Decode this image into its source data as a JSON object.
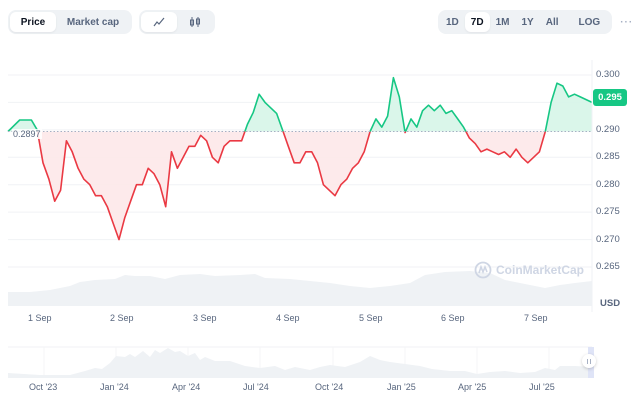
{
  "toolbar": {
    "type_options": [
      {
        "label": "Price",
        "active": true
      },
      {
        "label": "Market cap",
        "active": false
      }
    ],
    "chart_options": [
      {
        "icon": "line-chart-icon",
        "glyph": "⟋",
        "active": true
      },
      {
        "icon": "candlestick-icon",
        "glyph": "⫼",
        "active": false
      }
    ],
    "range_options": [
      {
        "label": "1D",
        "active": false
      },
      {
        "label": "7D",
        "active": true
      },
      {
        "label": "1M",
        "active": false
      },
      {
        "label": "1Y",
        "active": false
      },
      {
        "label": "All",
        "active": false
      }
    ],
    "log_label": "LOG",
    "more_label": "···"
  },
  "chart": {
    "current_price_badge": "0.295",
    "baseline_label": "0.2897",
    "currency_label": "USD",
    "watermark": "CoinMarketCap",
    "colors": {
      "up": "#16c784",
      "down": "#ea3943",
      "up_fill": "#d6f5e8",
      "down_fill": "#fde8e9",
      "volume": "#eff2f5",
      "grid": "#f0f2f5"
    }
  },
  "navigator": {
    "ticks": [
      "Oct '23",
      "Jan '24",
      "Apr '24",
      "Jul '24",
      "Oct '24",
      "Jan '25",
      "Apr '25",
      "Jul '25"
    ]
  },
  "chart_data": {
    "type": "line",
    "title": "",
    "xlabel": "",
    "ylabel": "USD",
    "categories": [
      "1 Sep",
      "2 Sep",
      "3 Sep",
      "4 Sep",
      "5 Sep",
      "6 Sep",
      "7 Sep"
    ],
    "y_ticks": [
      "0.300",
      "0.295",
      "0.290",
      "0.285",
      "0.280",
      "0.275",
      "0.270",
      "0.265"
    ],
    "ylim": [
      0.263,
      0.301
    ],
    "baseline": 0.2897,
    "current": 0.295,
    "grid": true,
    "legend": "none",
    "series": [
      {
        "name": "Price",
        "x": [
          0,
          0.02,
          0.04,
          0.05,
          0.06,
          0.07,
          0.08,
          0.09,
          0.1,
          0.11,
          0.12,
          0.13,
          0.14,
          0.15,
          0.16,
          0.17,
          0.18,
          0.19,
          0.2,
          0.21,
          0.22,
          0.23,
          0.24,
          0.25,
          0.26,
          0.27,
          0.28,
          0.29,
          0.3,
          0.31,
          0.32,
          0.33,
          0.34,
          0.35,
          0.36,
          0.37,
          0.38,
          0.39,
          0.4,
          0.41,
          0.42,
          0.43,
          0.44,
          0.45,
          0.46,
          0.47,
          0.48,
          0.49,
          0.5,
          0.51,
          0.52,
          0.53,
          0.54,
          0.55,
          0.56,
          0.57,
          0.58,
          0.59,
          0.6,
          0.61,
          0.62,
          0.63,
          0.64,
          0.65,
          0.66,
          0.67,
          0.68,
          0.69,
          0.7,
          0.71,
          0.72,
          0.73,
          0.74,
          0.75,
          0.76,
          0.77,
          0.78,
          0.79,
          0.8,
          0.81,
          0.82,
          0.83,
          0.84,
          0.85,
          0.86,
          0.87,
          0.88,
          0.89,
          0.9,
          0.91,
          0.92,
          0.93,
          0.94,
          0.95,
          0.96,
          0.97,
          0.98,
          1.0
        ],
        "values": [
          0.2897,
          0.2918,
          0.2918,
          0.29,
          0.284,
          0.281,
          0.277,
          0.279,
          0.288,
          0.286,
          0.283,
          0.281,
          0.28,
          0.278,
          0.278,
          0.276,
          0.273,
          0.27,
          0.274,
          0.277,
          0.28,
          0.28,
          0.283,
          0.282,
          0.28,
          0.276,
          0.286,
          0.283,
          0.285,
          0.287,
          0.287,
          0.289,
          0.288,
          0.285,
          0.284,
          0.287,
          0.288,
          0.288,
          0.288,
          0.291,
          0.2932,
          0.2965,
          0.295,
          0.294,
          0.293,
          0.29,
          0.287,
          0.284,
          0.284,
          0.286,
          0.286,
          0.284,
          0.28,
          0.279,
          0.278,
          0.28,
          0.281,
          0.283,
          0.284,
          0.286,
          0.2897,
          0.292,
          0.2905,
          0.2925,
          0.2995,
          0.296,
          0.2895,
          0.292,
          0.2905,
          0.2935,
          0.2945,
          0.2935,
          0.2945,
          0.293,
          0.2935,
          0.292,
          0.2905,
          0.2885,
          0.2875,
          0.286,
          0.2865,
          0.286,
          0.2855,
          0.286,
          0.285,
          0.2865,
          0.285,
          0.284,
          0.285,
          0.286,
          0.2897,
          0.295,
          0.2985,
          0.298,
          0.296,
          0.2965,
          0.296,
          0.295
        ]
      }
    ],
    "volume_hint": "shaded grey area along the bottom of the chart, higher around 2 Sep–3 Sep and 6 Sep, lower toward 5 Sep and 7 Sep"
  }
}
